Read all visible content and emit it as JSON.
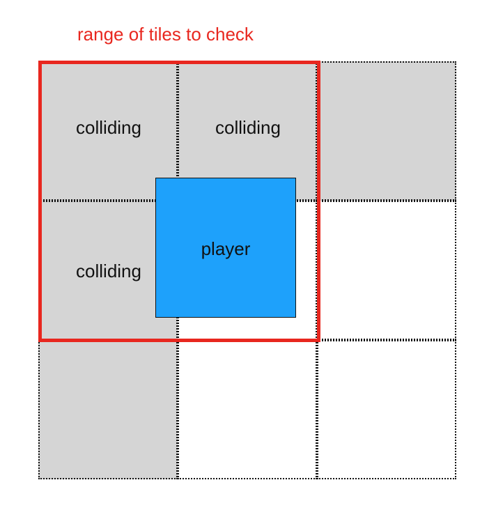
{
  "range": {
    "caption": "range of tiles to check",
    "color": "#e8271f"
  },
  "tiles": [
    {
      "label": "colliding",
      "solid": true
    },
    {
      "label": "colliding",
      "solid": true
    },
    {
      "label": "",
      "solid": true
    },
    {
      "label": "colliding",
      "solid": true
    },
    {
      "label": "",
      "solid": false
    },
    {
      "label": "",
      "solid": false
    },
    {
      "label": "",
      "solid": true
    },
    {
      "label": "",
      "solid": false
    },
    {
      "label": "",
      "solid": false
    }
  ],
  "player": {
    "label": "player",
    "color": "#1ea1fb"
  },
  "colors": {
    "solid_tile": "#d5d5d5",
    "empty_tile": "#ffffff"
  }
}
